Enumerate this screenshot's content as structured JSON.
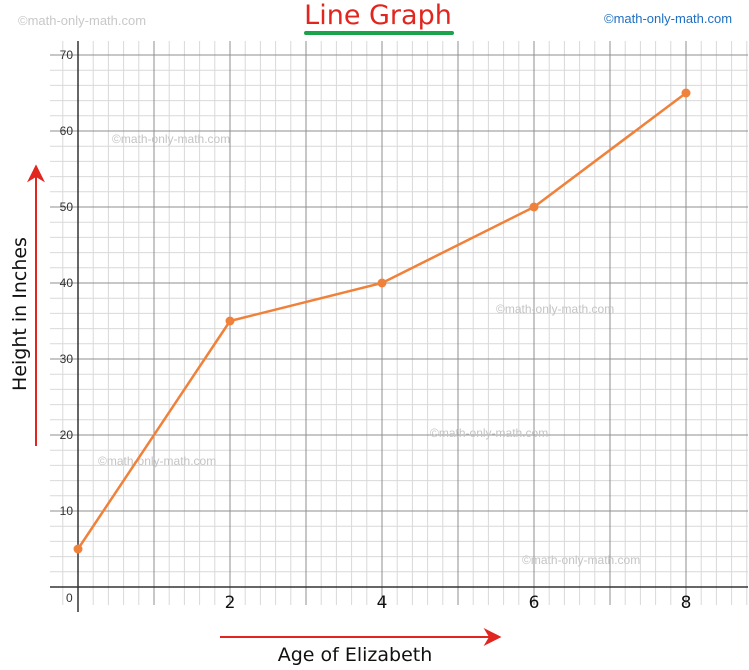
{
  "watermarks": {
    "top_left": "©math-only-math.com",
    "top_right": "©math-only-math.com",
    "inner": "©math-only-math.com"
  },
  "colors": {
    "title": "#e0261f",
    "title_underline": "#1aa34a",
    "series": "#f0813a",
    "arrows": "#e0261f"
  },
  "chart_data": {
    "type": "line",
    "title": "Line Graph",
    "xlabel": "Age of Elizabeth",
    "ylabel": "Height in Inches",
    "xlim": [
      0,
      8.8
    ],
    "ylim": [
      -3,
      72
    ],
    "x_ticks": [
      2,
      4,
      6,
      8
    ],
    "y_ticks": [
      10,
      20,
      30,
      40,
      50,
      60,
      70
    ],
    "origin_label": "0",
    "grid": true,
    "series": [
      {
        "x": [
          0,
          2,
          4,
          6,
          8
        ],
        "y": [
          5,
          35,
          40,
          50,
          65
        ]
      }
    ]
  }
}
